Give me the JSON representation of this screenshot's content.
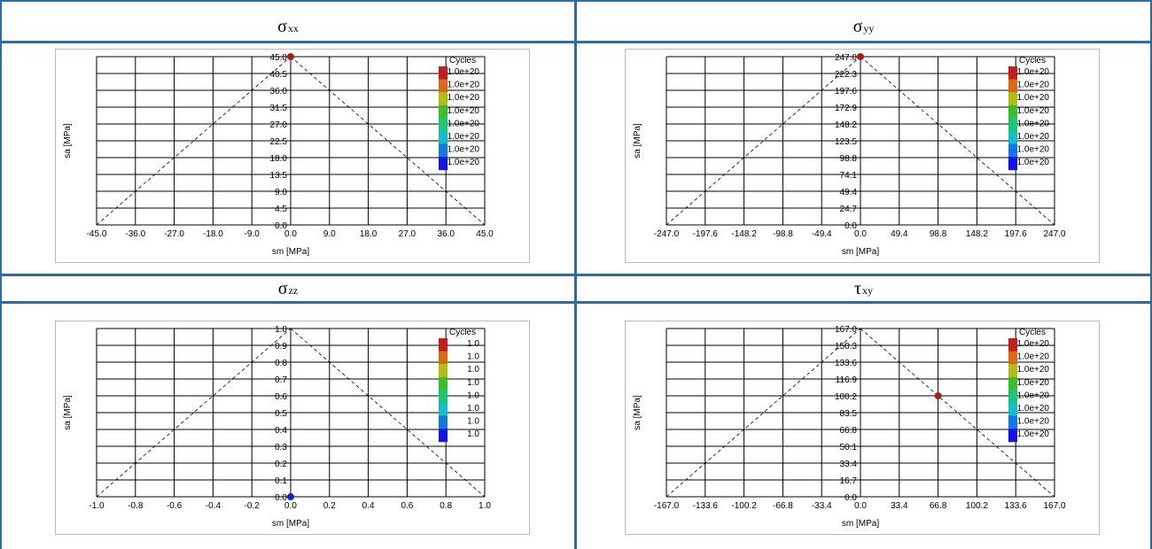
{
  "panels": [
    {
      "title_main": "σ",
      "title_sub": "xx",
      "chart_data": {
        "type": "scatter",
        "title": "σxx",
        "xlabel": "sm [MPa]",
        "ylabel": "sa [MPa]",
        "x_ticks": [
          "-45.0",
          "-36.0",
          "-27.0",
          "-18.0",
          "-9.0",
          "0.0",
          "9.0",
          "18.0",
          "27.0",
          "36.0",
          "45.0"
        ],
        "y_ticks": [
          "0.0",
          "4.5",
          "9.0",
          "13.5",
          "18.0",
          "22.5",
          "27.0",
          "31.5",
          "36.0",
          "40.5",
          "45.0"
        ],
        "xlim": [
          -45.0,
          45.0
        ],
        "ylim": [
          0.0,
          45.0
        ],
        "points": [
          {
            "x": 0.0,
            "y": 45.0,
            "color": "#b01a10"
          }
        ],
        "legend_title": "Cycles",
        "legend_labels": [
          "1.0e+20",
          "1.0e+20",
          "1.0e+20",
          "1.0e+20",
          "1.0e+20",
          "1.0e+20",
          "1.0e+20",
          "1.0e+20"
        ],
        "grid": true,
        "legend": "top-right"
      }
    },
    {
      "title_main": "σ",
      "title_sub": "yy",
      "chart_data": {
        "type": "scatter",
        "title": "σyy",
        "xlabel": "sm [MPa]",
        "ylabel": "sa [MPa]",
        "x_ticks": [
          "-247.0",
          "-197.6",
          "-148.2",
          "-98.8",
          "-49.4",
          "0.0",
          "49.4",
          "98.8",
          "148.2",
          "197.6",
          "247.0"
        ],
        "y_ticks": [
          "0.0",
          "24.7",
          "49.4",
          "74.1",
          "98.8",
          "123.5",
          "148.2",
          "172.9",
          "197.6",
          "222.3",
          "247.0"
        ],
        "xlim": [
          -247.0,
          247.0
        ],
        "ylim": [
          0.0,
          247.0
        ],
        "points": [
          {
            "x": 0.0,
            "y": 247.0,
            "color": "#b01a10"
          }
        ],
        "legend_title": "Cycles",
        "legend_labels": [
          "1.0e+20",
          "1.0e+20",
          "1.0e+20",
          "1.0e+20",
          "1.0e+20",
          "1.0e+20",
          "1.0e+20",
          "1.0e+20"
        ],
        "grid": true,
        "legend": "top-right"
      }
    },
    {
      "title_main": "σ",
      "title_sub": "zz",
      "chart_data": {
        "type": "scatter",
        "title": "σzz",
        "xlabel": "sm [MPa]",
        "ylabel": "sa [MPa]",
        "x_ticks": [
          "-1.0",
          "-0.8",
          "-0.6",
          "-0.4",
          "-0.2",
          "0.0",
          "0.2",
          "0.4",
          "0.6",
          "0.8",
          "1.0"
        ],
        "y_ticks": [
          "0.0",
          "0.1",
          "0.2",
          "0.3",
          "0.4",
          "0.5",
          "0.6",
          "0.7",
          "0.8",
          "0.9",
          "1.0"
        ],
        "xlim": [
          -1.0,
          1.0
        ],
        "ylim": [
          0.0,
          1.0
        ],
        "points": [
          {
            "x": 0.0,
            "y": 0.0,
            "color": "#1420c8"
          }
        ],
        "legend_title": "Cycles",
        "legend_labels": [
          "1.0",
          "1.0",
          "1.0",
          "1.0",
          "1.0",
          "1.0",
          "1.0",
          "1.0"
        ],
        "grid": true,
        "legend": "top-right"
      }
    },
    {
      "title_main": "τ",
      "title_sub": "xy",
      "chart_data": {
        "type": "scatter",
        "title": "τxy",
        "xlabel": "sm [MPa]",
        "ylabel": "sa [MPa]",
        "x_ticks": [
          "-167.0",
          "-133.6",
          "-100.2",
          "-66.8",
          "-33.4",
          "0.0",
          "33.4",
          "66.8",
          "100.2",
          "133.6",
          "167.0"
        ],
        "y_ticks": [
          "0.0",
          "16.7",
          "33.4",
          "50.1",
          "66.8",
          "83.5",
          "100.2",
          "116.9",
          "133.6",
          "150.3",
          "167.0"
        ],
        "xlim": [
          -167.0,
          167.0
        ],
        "ylim": [
          0.0,
          167.0
        ],
        "points": [
          {
            "x": 66.8,
            "y": 100.2,
            "color": "#b01a10"
          }
        ],
        "legend_title": "Cycles",
        "legend_labels": [
          "1.0e+20",
          "1.0e+20",
          "1.0e+20",
          "1.0e+20",
          "1.0e+20",
          "1.0e+20",
          "1.0e+20",
          "1.0e+20"
        ],
        "grid": true,
        "legend": "top-right"
      }
    }
  ],
  "legend_colors": [
    "#c41e1a",
    "#d86a14",
    "#b4be12",
    "#3cbe28",
    "#18c878",
    "#14bec8",
    "#1478e0",
    "#1414e8"
  ]
}
